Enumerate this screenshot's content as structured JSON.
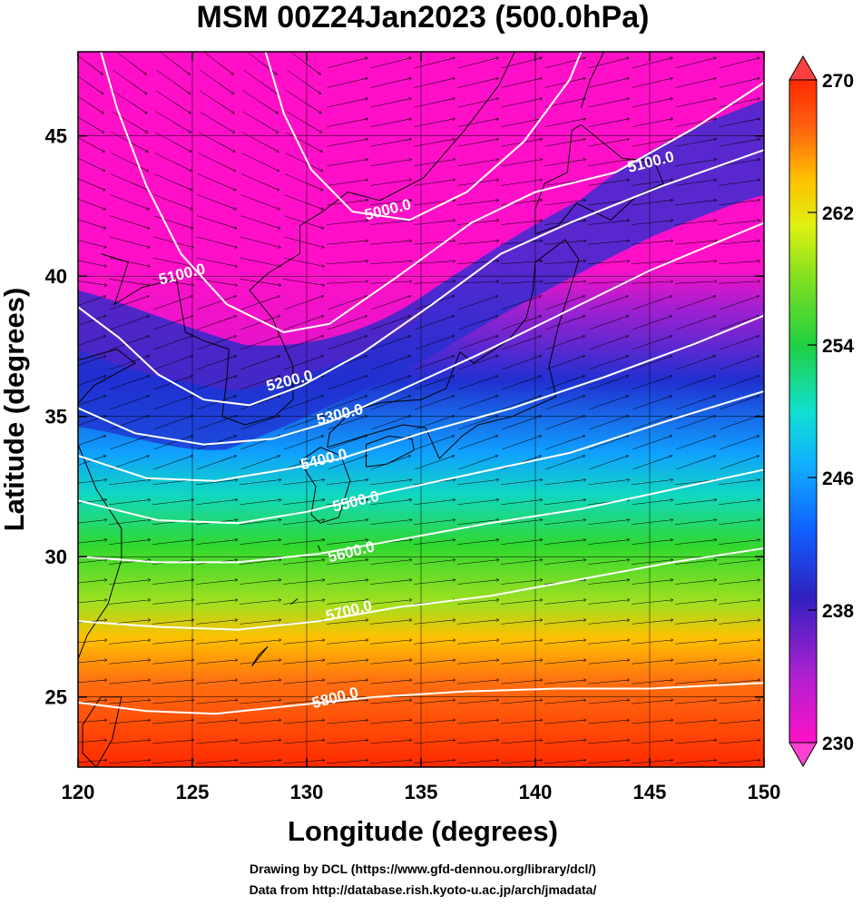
{
  "title": "MSM 00Z24Jan2023 (500.0hPa)",
  "xlabel": "Longitude (degrees)",
  "ylabel": "Latitude  (degrees)",
  "credits": [
    "Drawing by DCL (https://www.gfd-dennou.org/library/dcl/)",
    "Data from http://database.rish.kyoto-u.ac.jp/arch/jmadata/"
  ],
  "map": {
    "lon_range": [
      120,
      150
    ],
    "lat_range": [
      22.5,
      48
    ],
    "lon_ticks": [
      "120",
      "125",
      "130",
      "135",
      "140",
      "145",
      "150"
    ],
    "lat_ticks": [
      "25",
      "30",
      "35",
      "40",
      "45"
    ],
    "field_units_colorbar_ticks": [
      "230",
      "238",
      "246",
      "254",
      "262",
      "270"
    ],
    "colorbar_range": [
      230,
      270
    ],
    "contour_labels": [
      {
        "text": "5000.0",
        "lon": 133.6,
        "lat": 42.2
      },
      {
        "text": "5100.0",
        "lon": 145.1,
        "lat": 43.9
      },
      {
        "text": "5100.0",
        "lon": 124.6,
        "lat": 39.9
      },
      {
        "text": "5200.0",
        "lon": 129.3,
        "lat": 36.1
      },
      {
        "text": "5300.0",
        "lon": 131.5,
        "lat": 34.9
      },
      {
        "text": "5400.0",
        "lon": 130.8,
        "lat": 33.3
      },
      {
        "text": "5500.0",
        "lon": 132.2,
        "lat": 31.8
      },
      {
        "text": "5600.0",
        "lon": 132.0,
        "lat": 30.0
      },
      {
        "text": "5700.0",
        "lon": 131.9,
        "lat": 27.9
      },
      {
        "text": "5800.0",
        "lon": 131.3,
        "lat": 24.8
      }
    ]
  },
  "colors": {
    "cold": "#ff10c8",
    "warm": "#ff2a00",
    "contour": "#ffffff",
    "coast": "#000000"
  }
}
